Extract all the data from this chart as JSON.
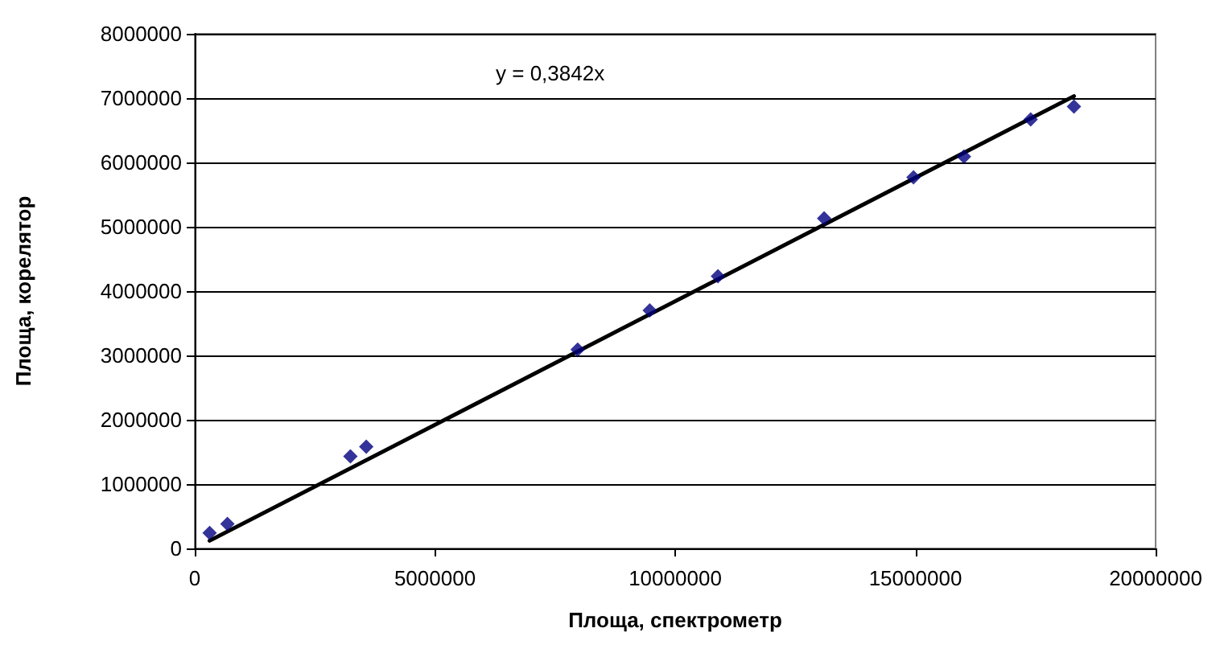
{
  "chart_data": {
    "type": "scatter",
    "xlabel": "Площа, спектрометр",
    "ylabel": "Площа, корелятор",
    "series": [
      {
        "color": "#000080",
        "marker": "diamond",
        "x": [
          310000,
          680000,
          3240000,
          3570000,
          7970000,
          9470000,
          10890000,
          13100000,
          14960000,
          16010000,
          17400000,
          18300000
        ],
        "values": [
          240000,
          380000,
          1430000,
          1580000,
          3090000,
          3700000,
          4230000,
          5130000,
          5770000,
          6090000,
          6670000,
          6870000
        ]
      },
      {
        "type": "line",
        "color": "#000000",
        "marker": "none",
        "line_style": "solid",
        "x": [
          310000,
          18300000
        ],
        "values": [
          120000,
          7030000
        ]
      }
    ],
    "annotations": [
      "y = 0,3842x"
    ],
    "xlim": [
      0,
      20000000
    ],
    "xticks": [
      0,
      5000000,
      10000000,
      15000000,
      20000000
    ],
    "ylim": [
      0,
      8000000
    ],
    "yticks": [
      0,
      1000000,
      2000000,
      3000000,
      4000000,
      5000000,
      6000000,
      7000000,
      8000000
    ],
    "grid": "y"
  }
}
